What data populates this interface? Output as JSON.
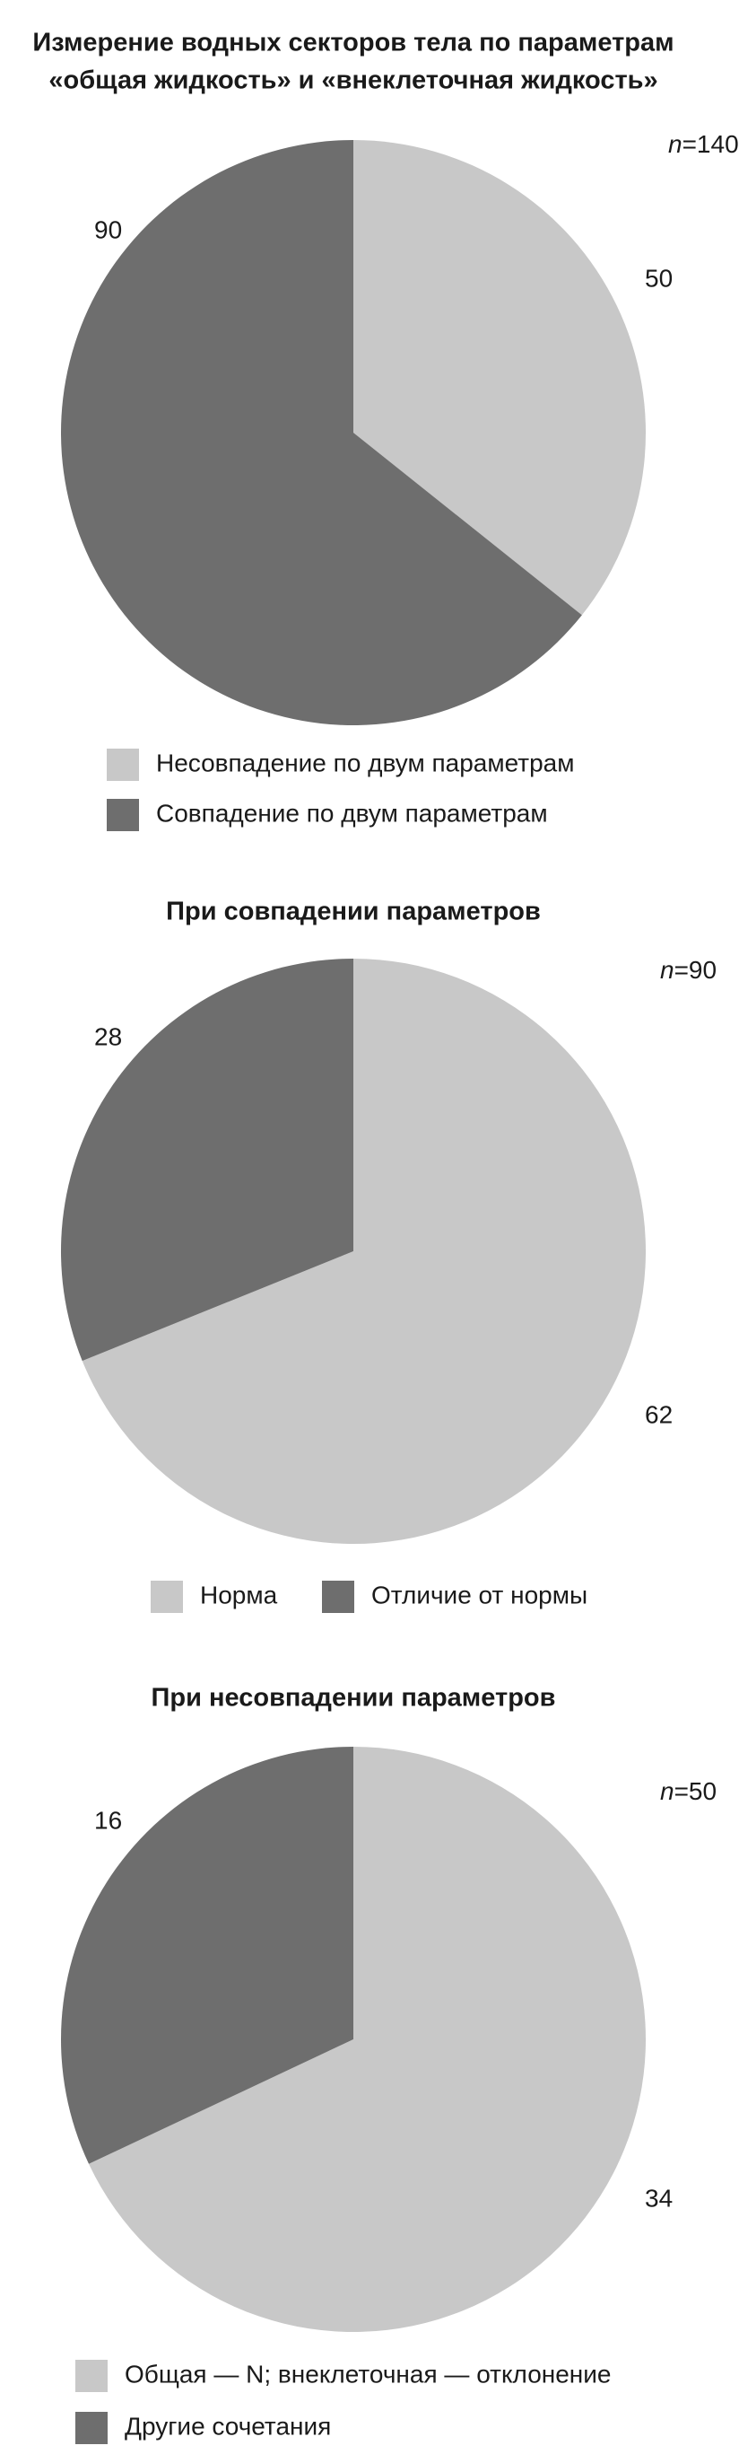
{
  "chart_data": [
    {
      "type": "pie",
      "title": [
        "Измерение водных секторов тела по параметрам",
        "«общая жидкость» и «внеклеточная жидкость»"
      ],
      "annotation": "n=140",
      "categories": [
        "Несовпадение по двум параметрам",
        "Совпадение по двум параметрам"
      ],
      "values": [
        50,
        90
      ],
      "colors": [
        "#c8c8c8",
        "#6e6e6e"
      ],
      "legend": "vertical"
    },
    {
      "type": "pie",
      "title": "При совпадении параметров",
      "annotation": "n=90",
      "categories": [
        "Норма",
        "Отличие от нормы"
      ],
      "values": [
        62,
        28
      ],
      "colors": [
        "#c8c8c8",
        "#6e6e6e"
      ],
      "legend": "horizontal"
    },
    {
      "type": "pie",
      "title": "При несовпадении параметров",
      "annotation": "n=50",
      "categories": [
        "Общая — N; внеклеточная — отклонение",
        "Другие сочетания"
      ],
      "values": [
        34,
        16
      ],
      "colors": [
        "#c8c8c8",
        "#6e6e6e"
      ],
      "legend": "vertical"
    }
  ]
}
